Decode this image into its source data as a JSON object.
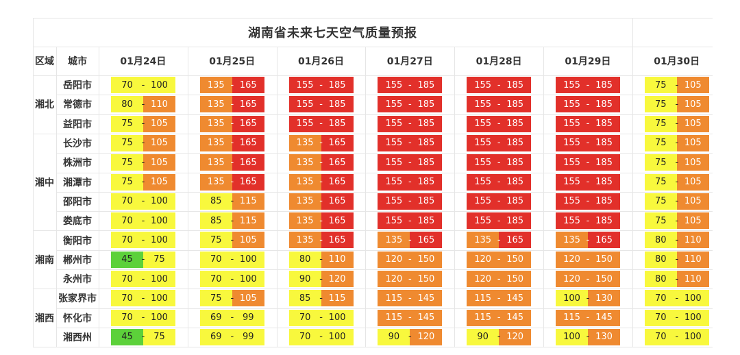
{
  "title": "湖南省未来七天空气质量预报",
  "headers": {
    "region": "区域",
    "city": "城市"
  },
  "dates": [
    "01月24日",
    "01月25日",
    "01月26日",
    "01月27日",
    "01月28日",
    "01月29日",
    "01月30日"
  ],
  "dash": "-",
  "colors": {
    "green": "#5cd13a",
    "yellow": "#f8f83d",
    "orange": "#ef8a30",
    "red": "#e2302a"
  },
  "regions": [
    {
      "name": "湘北",
      "cities": [
        "岳阳市",
        "常德市",
        "益阳市"
      ]
    },
    {
      "name": "湘中",
      "cities": [
        "长沙市",
        "株洲市",
        "湘潭市",
        "邵阳市",
        "娄底市"
      ]
    },
    {
      "name": "湘南",
      "cities": [
        "衡阳市",
        "郴州市",
        "永州市"
      ]
    },
    {
      "name": "湘西",
      "cities": [
        "张家界市",
        "怀化市",
        "湘西州"
      ]
    }
  ],
  "rows": [
    {
      "city": "岳阳市",
      "values": [
        [
          "70",
          "100",
          "yellow",
          "yellow"
        ],
        [
          "135",
          "165",
          "orange",
          "red"
        ],
        [
          "155",
          "185",
          "red",
          "red"
        ],
        [
          "155",
          "185",
          "red",
          "red"
        ],
        [
          "155",
          "185",
          "red",
          "red"
        ],
        [
          "155",
          "185",
          "red",
          "red"
        ],
        [
          "75",
          "105",
          "yellow",
          "orange"
        ]
      ]
    },
    {
      "city": "常德市",
      "values": [
        [
          "80",
          "110",
          "yellow",
          "orange"
        ],
        [
          "135",
          "165",
          "orange",
          "red"
        ],
        [
          "155",
          "185",
          "red",
          "red"
        ],
        [
          "155",
          "185",
          "red",
          "red"
        ],
        [
          "155",
          "185",
          "red",
          "red"
        ],
        [
          "155",
          "185",
          "red",
          "red"
        ],
        [
          "75",
          "105",
          "yellow",
          "orange"
        ]
      ]
    },
    {
      "city": "益阳市",
      "values": [
        [
          "75",
          "105",
          "yellow",
          "orange"
        ],
        [
          "135",
          "165",
          "orange",
          "red"
        ],
        [
          "155",
          "185",
          "red",
          "red"
        ],
        [
          "155",
          "185",
          "red",
          "red"
        ],
        [
          "155",
          "185",
          "red",
          "red"
        ],
        [
          "155",
          "185",
          "red",
          "red"
        ],
        [
          "75",
          "105",
          "yellow",
          "orange"
        ]
      ]
    },
    {
      "city": "长沙市",
      "values": [
        [
          "75",
          "105",
          "yellow",
          "orange"
        ],
        [
          "135",
          "165",
          "orange",
          "red"
        ],
        [
          "135",
          "165",
          "orange",
          "red"
        ],
        [
          "155",
          "185",
          "red",
          "red"
        ],
        [
          "155",
          "185",
          "red",
          "red"
        ],
        [
          "155",
          "185",
          "red",
          "red"
        ],
        [
          "75",
          "105",
          "yellow",
          "orange"
        ]
      ]
    },
    {
      "city": "株洲市",
      "values": [
        [
          "75",
          "105",
          "yellow",
          "orange"
        ],
        [
          "135",
          "165",
          "orange",
          "red"
        ],
        [
          "135",
          "165",
          "orange",
          "red"
        ],
        [
          "155",
          "185",
          "red",
          "red"
        ],
        [
          "155",
          "185",
          "red",
          "red"
        ],
        [
          "155",
          "185",
          "red",
          "red"
        ],
        [
          "75",
          "105",
          "yellow",
          "orange"
        ]
      ]
    },
    {
      "city": "湘潭市",
      "values": [
        [
          "75",
          "105",
          "yellow",
          "orange"
        ],
        [
          "135",
          "165",
          "orange",
          "red"
        ],
        [
          "135",
          "165",
          "orange",
          "red"
        ],
        [
          "155",
          "185",
          "red",
          "red"
        ],
        [
          "155",
          "185",
          "red",
          "red"
        ],
        [
          "155",
          "185",
          "red",
          "red"
        ],
        [
          "75",
          "105",
          "yellow",
          "orange"
        ]
      ]
    },
    {
      "city": "邵阳市",
      "values": [
        [
          "70",
          "100",
          "yellow",
          "yellow"
        ],
        [
          "85",
          "115",
          "yellow",
          "orange"
        ],
        [
          "135",
          "165",
          "orange",
          "red"
        ],
        [
          "155",
          "185",
          "red",
          "red"
        ],
        [
          "155",
          "185",
          "red",
          "red"
        ],
        [
          "155",
          "185",
          "red",
          "red"
        ],
        [
          "75",
          "105",
          "yellow",
          "orange"
        ]
      ]
    },
    {
      "city": "娄底市",
      "values": [
        [
          "70",
          "100",
          "yellow",
          "yellow"
        ],
        [
          "85",
          "115",
          "yellow",
          "orange"
        ],
        [
          "135",
          "165",
          "orange",
          "red"
        ],
        [
          "155",
          "185",
          "red",
          "red"
        ],
        [
          "155",
          "185",
          "red",
          "red"
        ],
        [
          "155",
          "185",
          "red",
          "red"
        ],
        [
          "75",
          "105",
          "yellow",
          "orange"
        ]
      ]
    },
    {
      "city": "衡阳市",
      "values": [
        [
          "70",
          "100",
          "yellow",
          "yellow"
        ],
        [
          "75",
          "105",
          "yellow",
          "orange"
        ],
        [
          "135",
          "165",
          "orange",
          "red"
        ],
        [
          "135",
          "165",
          "orange",
          "red"
        ],
        [
          "135",
          "165",
          "orange",
          "red"
        ],
        [
          "135",
          "165",
          "orange",
          "red"
        ],
        [
          "80",
          "110",
          "yellow",
          "orange"
        ]
      ]
    },
    {
      "city": "郴州市",
      "values": [
        [
          "45",
          "75",
          "green",
          "yellow"
        ],
        [
          "70",
          "100",
          "yellow",
          "yellow"
        ],
        [
          "80",
          "110",
          "yellow",
          "orange"
        ],
        [
          "120",
          "150",
          "orange",
          "orange"
        ],
        [
          "120",
          "150",
          "orange",
          "orange"
        ],
        [
          "120",
          "150",
          "orange",
          "orange"
        ],
        [
          "80",
          "110",
          "yellow",
          "orange"
        ]
      ]
    },
    {
      "city": "永州市",
      "values": [
        [
          "70",
          "100",
          "yellow",
          "yellow"
        ],
        [
          "70",
          "100",
          "yellow",
          "yellow"
        ],
        [
          "90",
          "120",
          "yellow",
          "orange"
        ],
        [
          "120",
          "150",
          "orange",
          "orange"
        ],
        [
          "120",
          "150",
          "orange",
          "orange"
        ],
        [
          "120",
          "150",
          "orange",
          "orange"
        ],
        [
          "80",
          "110",
          "yellow",
          "orange"
        ]
      ]
    },
    {
      "city": "张家界市",
      "values": [
        [
          "70",
          "100",
          "yellow",
          "yellow"
        ],
        [
          "75",
          "105",
          "yellow",
          "orange"
        ],
        [
          "85",
          "115",
          "yellow",
          "orange"
        ],
        [
          "115",
          "145",
          "orange",
          "orange"
        ],
        [
          "115",
          "145",
          "orange",
          "orange"
        ],
        [
          "100",
          "130",
          "yellow",
          "orange"
        ],
        [
          "70",
          "100",
          "yellow",
          "yellow"
        ]
      ]
    },
    {
      "city": "怀化市",
      "values": [
        [
          "70",
          "100",
          "yellow",
          "yellow"
        ],
        [
          "69",
          "99",
          "yellow",
          "yellow"
        ],
        [
          "70",
          "100",
          "yellow",
          "yellow"
        ],
        [
          "115",
          "145",
          "orange",
          "orange"
        ],
        [
          "115",
          "145",
          "orange",
          "orange"
        ],
        [
          "115",
          "145",
          "orange",
          "orange"
        ],
        [
          "70",
          "100",
          "yellow",
          "yellow"
        ]
      ]
    },
    {
      "city": "湘西州",
      "values": [
        [
          "45",
          "75",
          "green",
          "yellow"
        ],
        [
          "69",
          "99",
          "yellow",
          "yellow"
        ],
        [
          "70",
          "100",
          "yellow",
          "yellow"
        ],
        [
          "90",
          "120",
          "yellow",
          "orange"
        ],
        [
          "90",
          "120",
          "yellow",
          "orange"
        ],
        [
          "100",
          "130",
          "yellow",
          "orange"
        ],
        [
          "70",
          "100",
          "yellow",
          "yellow"
        ]
      ]
    }
  ]
}
